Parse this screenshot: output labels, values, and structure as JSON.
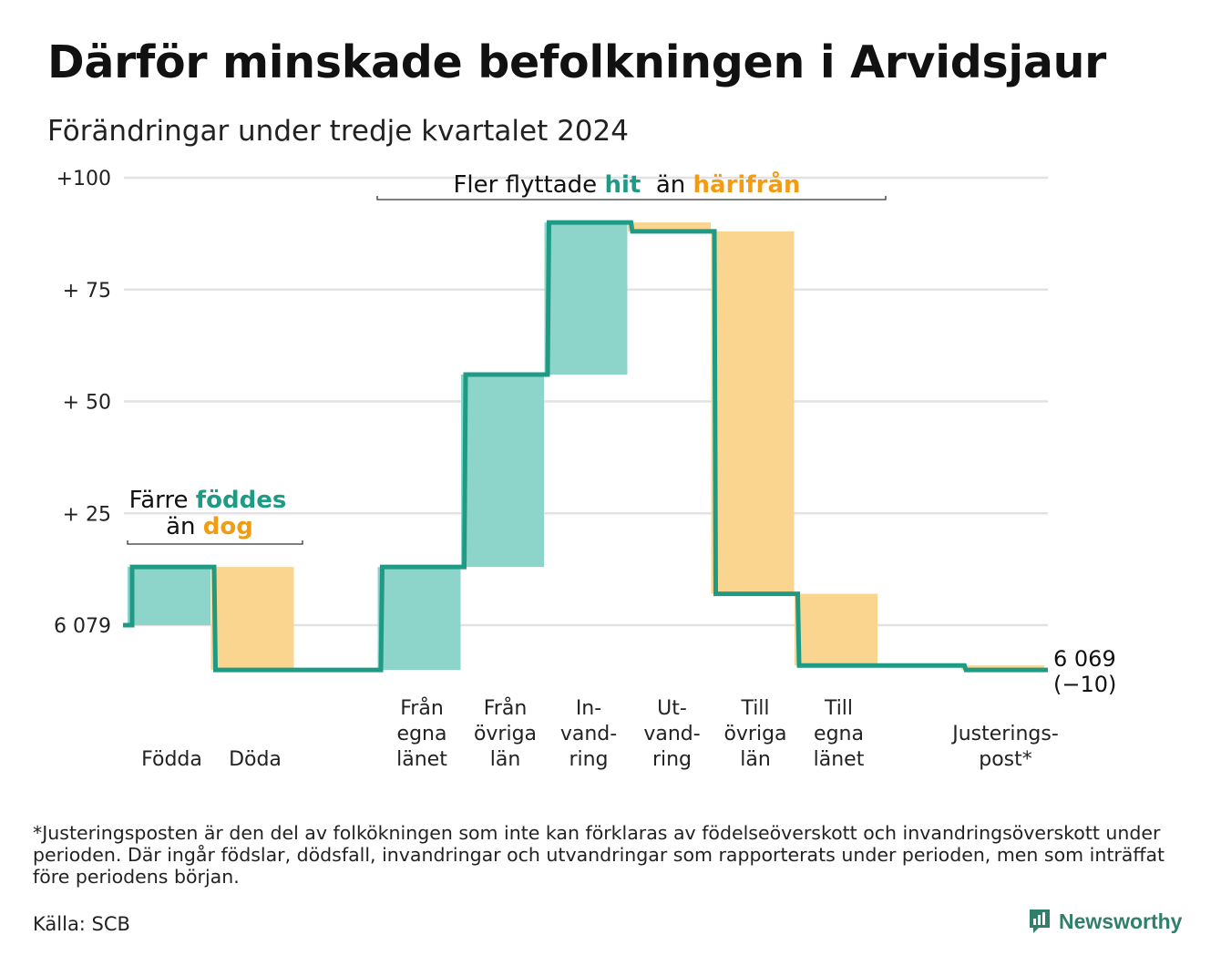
{
  "title": "Därför minskade befolkningen i Arvidsjaur",
  "subtitle": "Förändringar under tredje kvartalet 2024",
  "colors": {
    "increase_line": "#1f9a85",
    "increase_fill": "#8dd4cb",
    "decrease_fill": "#f9d58f",
    "accent_orange": "#f39c12",
    "grid": "#e2e2e2"
  },
  "chart_data": {
    "type": "waterfall",
    "start_value": 6079,
    "end_value": 6069,
    "y_offset_range": [
      -10,
      100
    ],
    "y_ticks": [
      {
        "value": 0,
        "label": "6 079"
      },
      {
        "value": 25,
        "label": "+ 25"
      },
      {
        "value": 50,
        "label": "+ 50"
      },
      {
        "value": 75,
        "label": "+ 75"
      },
      {
        "value": 100,
        "label": "+100"
      }
    ],
    "steps": [
      {
        "label_lines": [
          "Födda"
        ],
        "change": 13,
        "kind": "increase"
      },
      {
        "label_lines": [
          "Döda"
        ],
        "change": -23,
        "kind": "decrease"
      },
      {
        "label_lines": [],
        "change": 0,
        "kind": "gap"
      },
      {
        "label_lines": [
          "Från",
          "egna",
          "länet"
        ],
        "change": 23,
        "kind": "increase"
      },
      {
        "label_lines": [
          "Från",
          "övriga",
          "län"
        ],
        "change": 43,
        "kind": "increase"
      },
      {
        "label_lines": [
          "In-",
          "vand-",
          "ring"
        ],
        "change": 34,
        "kind": "increase"
      },
      {
        "label_lines": [
          "Ut-",
          "vand-",
          "ring"
        ],
        "change": -2,
        "kind": "decrease"
      },
      {
        "label_lines": [
          "Till",
          "övriga",
          "län"
        ],
        "change": -81,
        "kind": "decrease"
      },
      {
        "label_lines": [
          "Till",
          "egna",
          "länet"
        ],
        "change": -16,
        "kind": "decrease"
      },
      {
        "label_lines": [],
        "change": 0,
        "kind": "gap"
      },
      {
        "label_lines": [
          "Justerings-",
          "post*"
        ],
        "change": -1,
        "kind": "decrease"
      }
    ],
    "end_label_lines": [
      "6 069",
      "(−10)"
    ],
    "annotations": [
      {
        "segments": [
          {
            "text": "Färre ",
            "style": "normal"
          },
          {
            "text": "föddes",
            "style": "green"
          }
        ],
        "line2": [
          {
            "text": "än ",
            "style": "normal"
          },
          {
            "text": "dog",
            "style": "orange"
          }
        ]
      },
      {
        "segments": [
          {
            "text": "Fler flyttade ",
            "style": "normal"
          },
          {
            "text": "hit",
            "style": "green"
          },
          {
            "text": "  än ",
            "style": "normal"
          },
          {
            "text": "härifrån",
            "style": "orange"
          }
        ]
      }
    ]
  },
  "footnote": "*Justeringsposten är den del av folkökningen som inte kan förklaras av födelseöverskott och invandringsöverskott under perioden. Där ingår födslar, dödsfall, invandringar och utvandringar som rapporterats under perioden, men som inträffat före periodens början.",
  "source": "Källa: SCB",
  "brand": "Newsworthy"
}
